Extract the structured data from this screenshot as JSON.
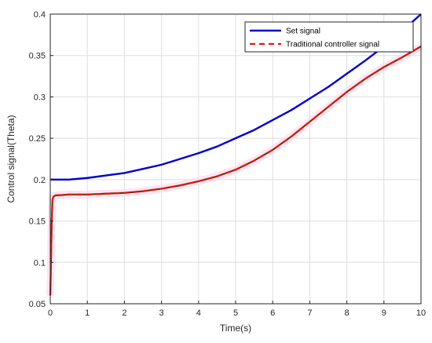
{
  "chart_data": {
    "type": "line",
    "title": "",
    "xlabel": "Time(s)",
    "ylabel": "Control signal(Theta)",
    "xlim": [
      0,
      10
    ],
    "ylim": [
      0.05,
      0.4
    ],
    "xticks": [
      "0",
      "1",
      "2",
      "3",
      "4",
      "5",
      "6",
      "7",
      "8",
      "9",
      "10"
    ],
    "yticks": [
      "0.05",
      "0.1",
      "0.15",
      "0.2",
      "0.25",
      "0.3",
      "0.35",
      "0.4"
    ],
    "grid": true,
    "legend_position": "top-right",
    "series": [
      {
        "name": "Set signal",
        "color": "#0000cc",
        "style": "solid",
        "x": [
          0,
          0.5,
          1,
          1.5,
          2,
          2.5,
          3,
          3.5,
          4,
          4.5,
          5,
          5.5,
          6,
          6.5,
          7,
          7.5,
          8,
          8.5,
          9,
          9.5,
          10
        ],
        "y": [
          0.2,
          0.2,
          0.202,
          0.205,
          0.208,
          0.213,
          0.218,
          0.225,
          0.232,
          0.24,
          0.25,
          0.26,
          0.272,
          0.284,
          0.298,
          0.312,
          0.328,
          0.344,
          0.361,
          0.38,
          0.4
        ]
      },
      {
        "name": "Traditional controller signal",
        "color": "#ee1111",
        "style": "dashed",
        "x": [
          0,
          0.02,
          0.04,
          0.06,
          0.08,
          0.1,
          0.15,
          0.2,
          0.5,
          1,
          1.5,
          2,
          2.5,
          3,
          3.5,
          4,
          4.5,
          5,
          5.5,
          6,
          6.5,
          7,
          7.5,
          8,
          8.5,
          9,
          9.5,
          10
        ],
        "y": [
          0.06,
          0.1,
          0.15,
          0.175,
          0.179,
          0.18,
          0.181,
          0.181,
          0.182,
          0.182,
          0.183,
          0.184,
          0.186,
          0.189,
          0.193,
          0.198,
          0.204,
          0.212,
          0.223,
          0.236,
          0.252,
          0.27,
          0.288,
          0.306,
          0.322,
          0.336,
          0.348,
          0.361
        ]
      }
    ]
  }
}
